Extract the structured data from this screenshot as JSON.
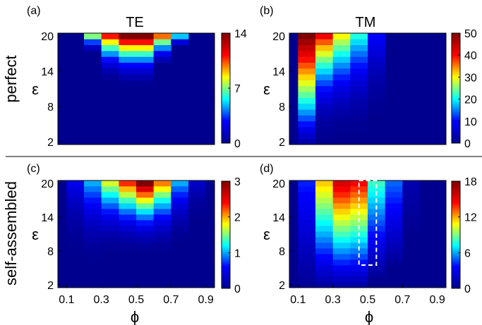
{
  "figure": {
    "row_labels": [
      "perfect",
      "self-assembled"
    ],
    "column_titles": [
      "TE",
      "TM"
    ],
    "xlabel": "ϕ",
    "ylabel": "ε",
    "colormap": [
      "#00008f",
      "#0000ff",
      "#00ffff",
      "#ffff00",
      "#ff0000",
      "#800000"
    ]
  },
  "chart_data": [
    {
      "type": "heatmap",
      "panel": "(a)",
      "title": "TE",
      "row_label": "perfect",
      "ylabel": "ε",
      "x_range": [
        0.05,
        0.95
      ],
      "y_range": [
        1.5,
        20.5
      ],
      "x_ticks": [],
      "y_ticks": [
        "2",
        "8",
        "14",
        "20"
      ],
      "colorbar": {
        "range": [
          0,
          14
        ],
        "ticks": [
          "0",
          "7",
          "14"
        ]
      },
      "columns": [
        {
          "phi": 0.25,
          "eps_from": 17.6,
          "peak": 7.0,
          "threshold": 19.5
        },
        {
          "phi": 0.35,
          "eps_from": 12.8,
          "peak": 11.0,
          "threshold": 19.5
        },
        {
          "phi": 0.45,
          "eps_from": 12.0,
          "peak": 14.0,
          "threshold": 19.5
        },
        {
          "phi": 0.55,
          "eps_from": 12.0,
          "peak": 14.0,
          "threshold": 19.5
        },
        {
          "phi": 0.65,
          "eps_from": 15.2,
          "peak": 10.0,
          "threshold": 19.5
        },
        {
          "phi": 0.75,
          "eps_from": 18.4,
          "peak": 5.0,
          "threshold": 19.5
        }
      ]
    },
    {
      "type": "heatmap",
      "panel": "(b)",
      "title": "TM",
      "row_label": "perfect",
      "ylabel": "ε",
      "x_range": [
        0.05,
        0.95
      ],
      "y_range": [
        1.5,
        20.5
      ],
      "x_ticks": [],
      "y_ticks": [
        "2",
        "8",
        "14",
        "20"
      ],
      "colorbar": {
        "range": [
          0,
          50
        ],
        "ticks": [
          "0",
          "10",
          "20",
          "30",
          "40",
          "50"
        ]
      },
      "columns": [
        {
          "phi": 0.15,
          "eps_from": 2.0,
          "peak": 50.0,
          "threshold": 1.5
        },
        {
          "phi": 0.25,
          "eps_from": 2.8,
          "peak": 41.0,
          "threshold": 4.0
        },
        {
          "phi": 0.35,
          "eps_from": 3.2,
          "peak": 30.0,
          "threshold": 5.0
        },
        {
          "phi": 0.45,
          "eps_from": 3.6,
          "peak": 21.0,
          "threshold": 6.0
        },
        {
          "phi": 0.55,
          "eps_from": 6.0,
          "peak": 10.0,
          "threshold": 8.0
        }
      ]
    },
    {
      "type": "heatmap",
      "panel": "(c)",
      "title": "",
      "row_label": "self-assembled",
      "xlabel": "ϕ",
      "ylabel": "ε",
      "x_range": [
        0.05,
        0.95
      ],
      "y_range": [
        1.5,
        20.5
      ],
      "x_ticks": [
        "0.1",
        "0.3",
        "0.5",
        "0.7",
        "0.9"
      ],
      "y_ticks": [
        "2",
        "8",
        "14",
        "20"
      ],
      "colorbar": {
        "range": [
          0,
          3
        ],
        "ticks": [
          "0",
          "1",
          "2",
          "3"
        ]
      },
      "columns": [
        {
          "phi": 0.15,
          "eps_from": 8.0,
          "peak": 0.5,
          "threshold": 19.5
        },
        {
          "phi": 0.25,
          "eps_from": 6.0,
          "peak": 1.0,
          "threshold": 19.5
        },
        {
          "phi": 0.35,
          "eps_from": 8.0,
          "peak": 1.7,
          "threshold": 19.5
        },
        {
          "phi": 0.45,
          "eps_from": 8.0,
          "peak": 2.3,
          "threshold": 19.5
        },
        {
          "phi": 0.55,
          "eps_from": 8.0,
          "peak": 3.0,
          "threshold": 19.5
        },
        {
          "phi": 0.65,
          "eps_from": 8.0,
          "peak": 2.1,
          "threshold": 19.5
        },
        {
          "phi": 0.75,
          "eps_from": 10.0,
          "peak": 1.0,
          "threshold": 19.5
        },
        {
          "phi": 0.85,
          "eps_from": 14.0,
          "peak": 0.3,
          "threshold": 19.5
        }
      ]
    },
    {
      "type": "heatmap",
      "panel": "(d)",
      "title": "",
      "row_label": "self-assembled",
      "xlabel": "ϕ",
      "ylabel": "ε",
      "x_range": [
        0.05,
        0.95
      ],
      "y_range": [
        1.5,
        20.5
      ],
      "x_ticks": [
        "0.1",
        "0.3",
        "0.5",
        "0.7",
        "0.9"
      ],
      "y_ticks": [
        "2",
        "8",
        "14",
        "20"
      ],
      "colorbar": {
        "range": [
          0,
          18
        ],
        "ticks": [
          "0",
          "6",
          "12",
          "18"
        ]
      },
      "columns": [
        {
          "phi": 0.15,
          "eps_from": 2.0,
          "peak": 4.0,
          "threshold": 1.5
        },
        {
          "phi": 0.25,
          "eps_from": 2.0,
          "peak": 11.5,
          "threshold": 1.5
        },
        {
          "phi": 0.35,
          "eps_from": 2.0,
          "peak": 15.5,
          "threshold": 1.5
        },
        {
          "phi": 0.45,
          "eps_from": 2.0,
          "peak": 14.5,
          "threshold": 1.5
        },
        {
          "phi": 0.55,
          "eps_from": 4.0,
          "peak": 8.0,
          "threshold": 1.5
        },
        {
          "phi": 0.65,
          "eps_from": 6.0,
          "peak": 5.0,
          "threshold": 1.5
        },
        {
          "phi": 0.75,
          "eps_from": 12.0,
          "peak": 1.0,
          "threshold": 1.5
        }
      ],
      "highlight_box": {
        "x": [
          0.45,
          0.55
        ],
        "y": [
          5.5,
          20.5
        ],
        "style": "white dashed"
      }
    }
  ]
}
